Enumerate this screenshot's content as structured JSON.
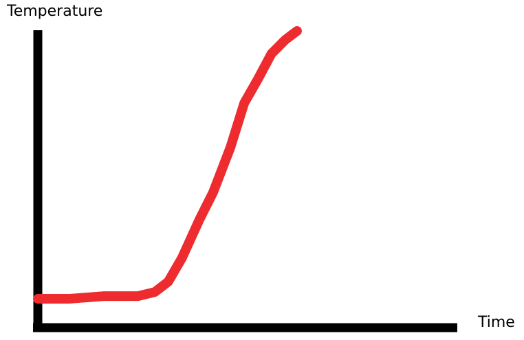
{
  "chart_data": {
    "type": "line",
    "y_label": "Temperature",
    "x_label": "Time",
    "xlim": [
      0,
      100
    ],
    "ylim": [
      0,
      100
    ],
    "x": [
      0,
      7.4,
      15.6,
      23.8,
      27.9,
      31.1,
      34.4,
      38.5,
      41.8,
      45.9,
      49.2,
      52.5,
      55.7,
      59.0,
      61.8
    ],
    "series": [
      {
        "color": "#ee2b2e",
        "values": [
          9.5,
          9.5,
          10.4,
          10.4,
          11.8,
          15.3,
          23.4,
          36.2,
          45.5,
          60.6,
          75.6,
          83.8,
          92.3,
          97.0,
          100
        ]
      }
    ]
  }
}
